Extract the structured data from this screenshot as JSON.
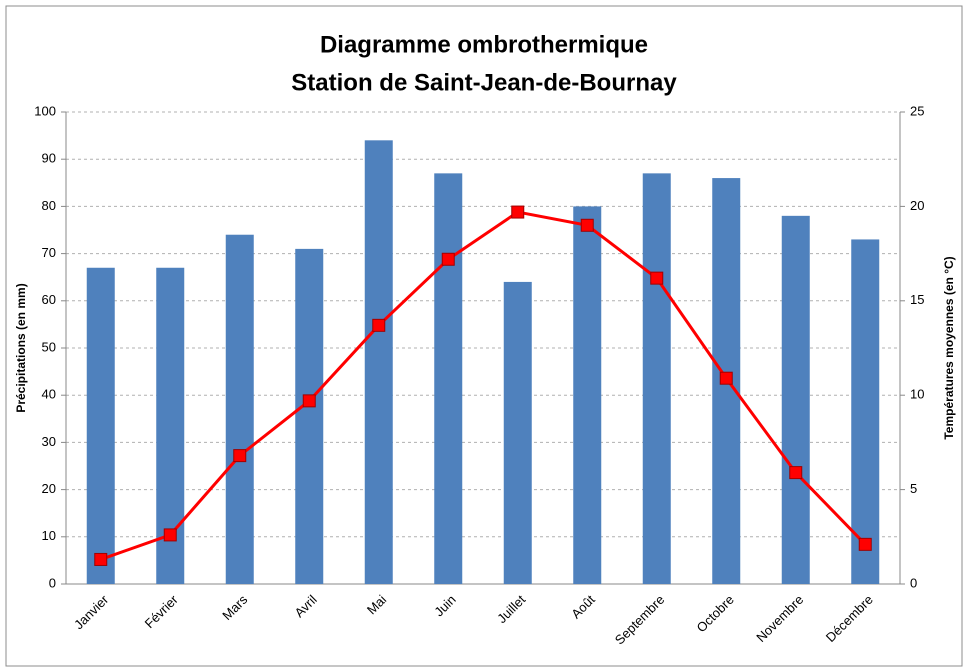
{
  "chart_data": {
    "type": "bar",
    "title": [
      "Diagramme ombrothermique",
      "Station de Saint-Jean-de-Bournay"
    ],
    "ylabel": "Précipitations (en mm)",
    "y2label": "Températures moyennes (en °C)",
    "categories": [
      "Janvier",
      "Février",
      "Mars",
      "Avril",
      "Mai",
      "Juin",
      "Juillet",
      "Août",
      "Septembre",
      "Octobre",
      "Novembre",
      "Décembre"
    ],
    "series": [
      {
        "type": "bar",
        "color": "#4f81bd",
        "values": [
          67,
          67,
          74,
          71,
          94,
          87,
          64,
          80,
          87,
          86,
          78,
          73
        ]
      },
      {
        "type": "line",
        "axis": "y2",
        "color": "#ff0000",
        "values": [
          1.3,
          2.6,
          6.8,
          9.7,
          13.7,
          17.2,
          19.7,
          19.0,
          16.2,
          10.9,
          5.9,
          2.1
        ]
      }
    ],
    "ylim": [
      0,
      100
    ],
    "yticks": [
      0,
      10,
      20,
      30,
      40,
      50,
      60,
      70,
      80,
      90,
      100
    ],
    "y2lim": [
      0,
      25
    ],
    "y2ticks": [
      0,
      5,
      10,
      15,
      20,
      25
    ],
    "grid": true
  }
}
